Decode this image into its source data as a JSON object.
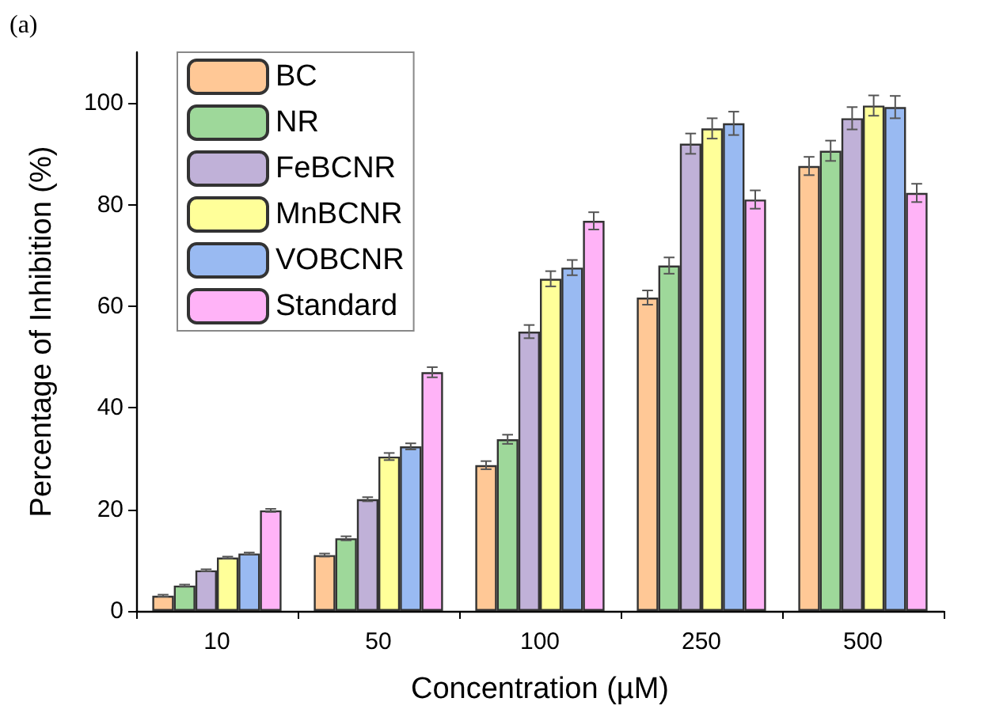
{
  "chart_data": {
    "type": "bar",
    "xlabel": "Concentration (µM)",
    "ylabel": "Percentage of Inhibition (%)",
    "annotations": [
      "(a)"
    ],
    "categories": [
      "10",
      "50",
      "100",
      "250",
      "500"
    ],
    "ylim": [
      0,
      110
    ],
    "yticks": [
      0,
      20,
      40,
      60,
      80,
      100
    ],
    "grid": false,
    "legend": "top left",
    "series": [
      {
        "name": "BC",
        "color": "#ffc896",
        "values": [
          3,
          11,
          28.7,
          61.7,
          87.6
        ],
        "errors": [
          0.2,
          0.3,
          0.8,
          1.4,
          1.8
        ]
      },
      {
        "name": "NR",
        "color": "#9ed89a",
        "values": [
          5,
          14.3,
          33.8,
          68,
          90.6
        ],
        "errors": [
          0.2,
          0.4,
          0.9,
          1.6,
          2
        ]
      },
      {
        "name": "FeBCNR",
        "color": "#c0b1d8",
        "values": [
          8,
          22,
          55,
          92,
          97
        ],
        "errors": [
          0.2,
          0.4,
          1.3,
          2,
          2.2
        ]
      },
      {
        "name": "MnBCNR",
        "color": "#ffff99",
        "values": [
          10.5,
          30.4,
          65.4,
          95,
          99.5
        ],
        "errors": [
          0.2,
          0.7,
          1.5,
          2,
          2
        ]
      },
      {
        "name": "VOBCNR",
        "color": "#99baf2",
        "values": [
          11.3,
          32.4,
          67.6,
          96,
          99.2
        ],
        "errors": [
          0.2,
          0.6,
          1.5,
          2.3,
          2.2
        ]
      },
      {
        "name": "Standard",
        "color": "#ffb3f7",
        "values": [
          19.8,
          47,
          76.8,
          81,
          82.3
        ],
        "errors": [
          0.3,
          1,
          1.7,
          1.8,
          1.8
        ]
      }
    ]
  }
}
